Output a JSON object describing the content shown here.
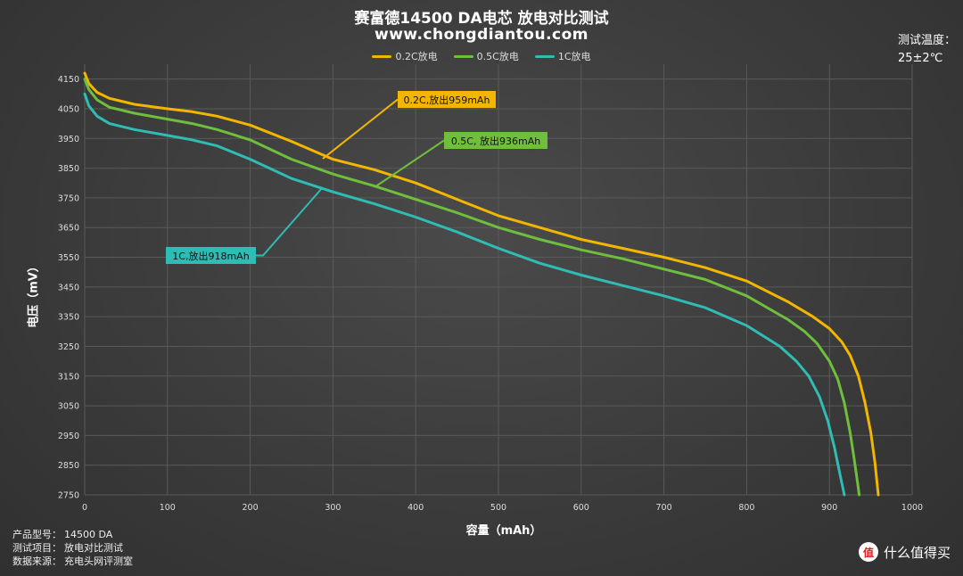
{
  "header": {
    "title": "赛富德14500 DA电芯 放电对比测试",
    "subtitle": "www.chongdiantou.com"
  },
  "temperature": {
    "label": "测试温度：",
    "value": "25±2℃"
  },
  "footer": {
    "rows": [
      {
        "key": "产品型号：",
        "value": "14500 DA"
      },
      {
        "key": "测试项目：",
        "value": "放电对比测试"
      },
      {
        "key": "数据来源：",
        "value": "充电头网评测室"
      }
    ]
  },
  "watermark": {
    "icon_text": "值",
    "text": "什么值得买"
  },
  "colors": {
    "s02": "#f2b600",
    "s05": "#6fbe3c",
    "s1": "#2fbcb4",
    "grid": "#5a5a5a"
  },
  "chart_data": {
    "type": "line",
    "xlabel": "容量（mAh）",
    "ylabel": "电压（mV）",
    "xlim": [
      0,
      1000
    ],
    "ylim": [
      2750,
      4200
    ],
    "xticks": [
      0,
      100,
      200,
      300,
      400,
      500,
      600,
      700,
      800,
      900,
      1000
    ],
    "yticks": [
      2750,
      2850,
      2950,
      3050,
      3150,
      3250,
      3350,
      3450,
      3550,
      3650,
      3750,
      3850,
      3950,
      4050,
      4150
    ],
    "grid": true,
    "legend_position": "top-center",
    "series": [
      {
        "name": "0.2C放电",
        "color_key": "s02",
        "points": [
          [
            0,
            4170
          ],
          [
            5,
            4135
          ],
          [
            15,
            4105
          ],
          [
            30,
            4085
          ],
          [
            60,
            4065
          ],
          [
            100,
            4050
          ],
          [
            130,
            4040
          ],
          [
            160,
            4025
          ],
          [
            200,
            3995
          ],
          [
            250,
            3940
          ],
          [
            300,
            3880
          ],
          [
            350,
            3845
          ],
          [
            400,
            3800
          ],
          [
            450,
            3745
          ],
          [
            500,
            3690
          ],
          [
            550,
            3650
          ],
          [
            600,
            3610
          ],
          [
            650,
            3580
          ],
          [
            700,
            3550
          ],
          [
            750,
            3515
          ],
          [
            800,
            3470
          ],
          [
            850,
            3400
          ],
          [
            880,
            3350
          ],
          [
            900,
            3310
          ],
          [
            915,
            3265
          ],
          [
            925,
            3220
          ],
          [
            935,
            3150
          ],
          [
            943,
            3060
          ],
          [
            950,
            2960
          ],
          [
            955,
            2860
          ],
          [
            959,
            2750
          ]
        ]
      },
      {
        "name": "0.5C放电",
        "color_key": "s05",
        "points": [
          [
            0,
            4150
          ],
          [
            5,
            4115
          ],
          [
            15,
            4080
          ],
          [
            30,
            4055
          ],
          [
            60,
            4035
          ],
          [
            100,
            4015
          ],
          [
            130,
            4000
          ],
          [
            160,
            3980
          ],
          [
            200,
            3945
          ],
          [
            250,
            3880
          ],
          [
            300,
            3830
          ],
          [
            350,
            3790
          ],
          [
            400,
            3745
          ],
          [
            450,
            3700
          ],
          [
            500,
            3650
          ],
          [
            550,
            3610
          ],
          [
            600,
            3575
          ],
          [
            650,
            3545
          ],
          [
            700,
            3510
          ],
          [
            750,
            3475
          ],
          [
            800,
            3420
          ],
          [
            850,
            3340
          ],
          [
            870,
            3300
          ],
          [
            885,
            3260
          ],
          [
            900,
            3200
          ],
          [
            910,
            3140
          ],
          [
            918,
            3060
          ],
          [
            925,
            2960
          ],
          [
            930,
            2870
          ],
          [
            934,
            2790
          ],
          [
            936,
            2750
          ]
        ]
      },
      {
        "name": "1C放电",
        "color_key": "s1",
        "points": [
          [
            0,
            4100
          ],
          [
            5,
            4060
          ],
          [
            15,
            4025
          ],
          [
            30,
            4000
          ],
          [
            60,
            3980
          ],
          [
            100,
            3960
          ],
          [
            130,
            3945
          ],
          [
            160,
            3925
          ],
          [
            200,
            3880
          ],
          [
            250,
            3815
          ],
          [
            300,
            3770
          ],
          [
            350,
            3730
          ],
          [
            400,
            3685
          ],
          [
            450,
            3635
          ],
          [
            500,
            3580
          ],
          [
            550,
            3530
          ],
          [
            600,
            3490
          ],
          [
            650,
            3455
          ],
          [
            700,
            3420
          ],
          [
            750,
            3380
          ],
          [
            800,
            3320
          ],
          [
            840,
            3250
          ],
          [
            860,
            3200
          ],
          [
            875,
            3150
          ],
          [
            888,
            3080
          ],
          [
            898,
            3000
          ],
          [
            906,
            2910
          ],
          [
            912,
            2830
          ],
          [
            918,
            2750
          ]
        ]
      }
    ],
    "annotations": [
      {
        "text": "0.2C,放出959mAh",
        "color_key": "s02"
      },
      {
        "text": "0.5C, 放出936mAh",
        "color_key": "s05"
      },
      {
        "text": "1C,放出918mAh",
        "color_key": "s1"
      }
    ]
  }
}
